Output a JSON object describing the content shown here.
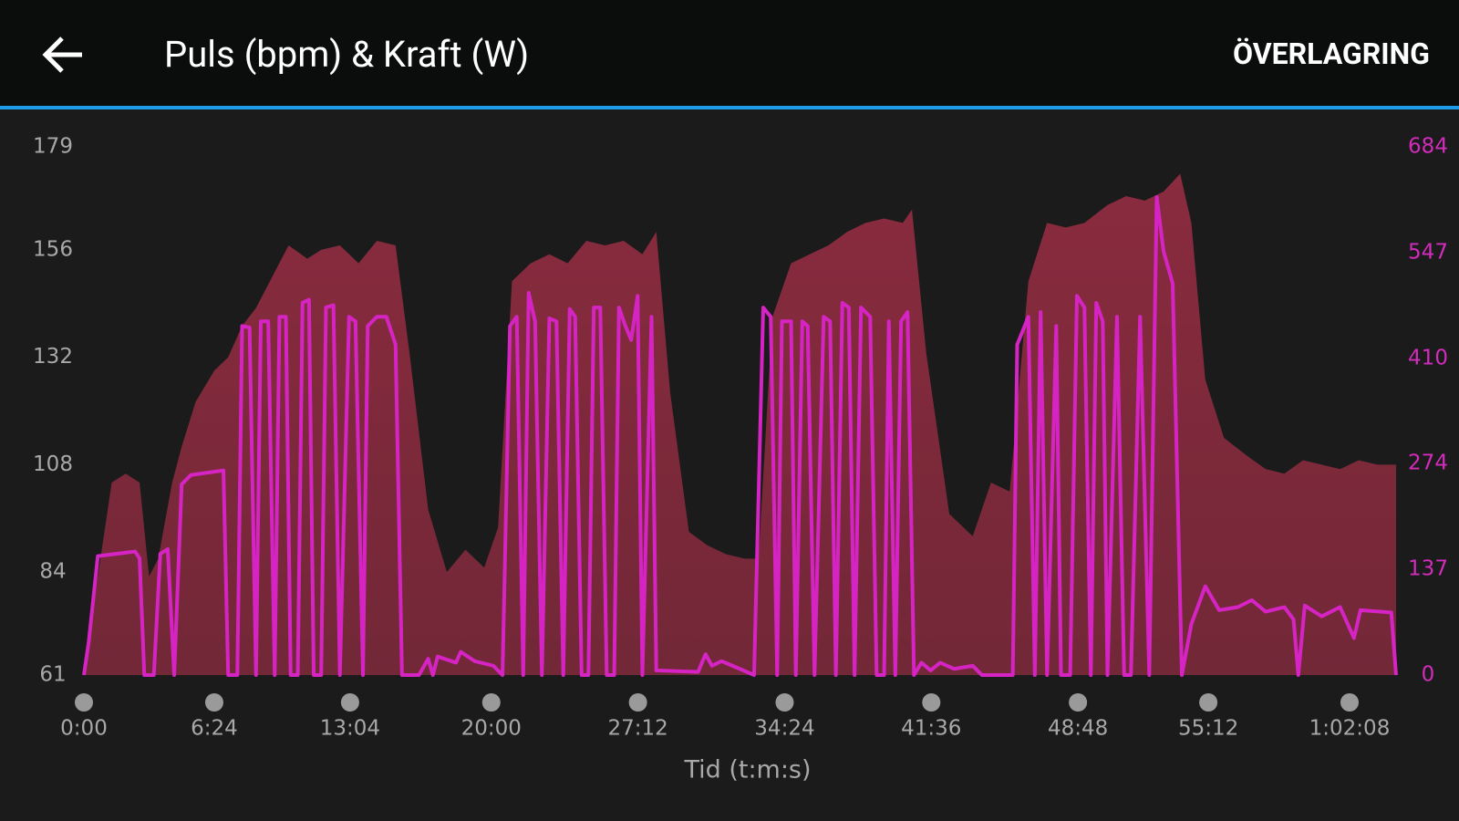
{
  "header": {
    "title": "Puls (bpm) & Kraft (W)",
    "action": "ÖVERLAGRING"
  },
  "chart_data": {
    "type": "area-line",
    "xlabel": "Tid (t:m:s)",
    "xlim": [
      0,
      3865
    ],
    "xticks": [
      {
        "value": 0,
        "label": "0:00"
      },
      {
        "value": 384,
        "label": "6:24"
      },
      {
        "value": 784,
        "label": "13:04"
      },
      {
        "value": 1200,
        "label": "20:00"
      },
      {
        "value": 1632,
        "label": "27:12"
      },
      {
        "value": 2064,
        "label": "34:24"
      },
      {
        "value": 2496,
        "label": "41:36"
      },
      {
        "value": 2928,
        "label": "48:48"
      },
      {
        "value": 3312,
        "label": "55:12"
      },
      {
        "value": 3728,
        "label": "1:02:08"
      }
    ],
    "ylim": [
      61,
      179
    ],
    "yticks": [
      61,
      84,
      108,
      132,
      156,
      179
    ],
    "y2lim": [
      0,
      684
    ],
    "y2ticks": [
      0,
      137,
      274,
      410,
      547,
      684
    ],
    "series": [
      {
        "kind": "area",
        "color": "#8a2b3f",
        "axis": "y",
        "x": [
          0,
          41,
          82,
          123,
          164,
          192,
          219,
          260,
          288,
          329,
          384,
          425,
          466,
          507,
          548,
          603,
          658,
          699,
          754,
          809,
          863,
          918,
          959,
          1014,
          1069,
          1124,
          1179,
          1220,
          1261,
          1316,
          1371,
          1425,
          1480,
          1535,
          1590,
          1645,
          1686,
          1727,
          1782,
          1836,
          1891,
          1946,
          1987,
          2028,
          2083,
          2138,
          2193,
          2248,
          2302,
          2357,
          2412,
          2439,
          2481,
          2549,
          2618,
          2672,
          2727,
          2782,
          2837,
          2892,
          2947,
          3015,
          3070,
          3125,
          3180,
          3229,
          3262,
          3303,
          3358,
          3426,
          3481,
          3536,
          3591,
          3646,
          3700,
          3755,
          3810,
          3865
        ],
        "values": [
          61,
          83,
          104,
          106,
          104,
          83,
          87,
          104,
          112,
          122,
          129,
          132,
          139,
          143,
          149,
          157,
          154,
          156,
          157,
          153,
          158,
          157,
          133,
          98,
          84,
          89,
          85,
          94,
          149,
          153,
          155,
          153,
          158,
          157,
          158,
          155,
          160,
          124,
          93,
          90,
          88,
          87,
          87,
          141,
          153,
          155,
          157,
          160,
          162,
          163,
          162,
          165,
          133,
          97,
          92,
          104,
          102,
          149,
          162,
          161,
          162,
          166,
          168,
          167,
          169,
          173,
          162,
          127,
          114,
          110,
          107,
          106,
          109,
          108,
          107,
          109,
          108,
          108
        ]
      },
      {
        "kind": "line",
        "color": "#d624c4",
        "axis": "y2",
        "x": [
          0,
          14,
          41,
          151,
          164,
          178,
          206,
          225,
          247,
          266,
          288,
          315,
          411,
          425,
          452,
          466,
          488,
          507,
          521,
          543,
          562,
          576,
          595,
          609,
          630,
          644,
          663,
          677,
          699,
          713,
          735,
          754,
          781,
          800,
          822,
          836,
          863,
          891,
          918,
          937,
          987,
          1014,
          1028,
          1042,
          1096,
          1110,
          1151,
          1206,
          1233,
          1255,
          1275,
          1294,
          1310,
          1329,
          1349,
          1371,
          1392,
          1412,
          1431,
          1447,
          1466,
          1486,
          1502,
          1521,
          1540,
          1562,
          1576,
          1595,
          1612,
          1631,
          1645,
          1672,
          1686,
          1809,
          1831,
          1850,
          1878,
          1932,
          1974,
          2001,
          2023,
          2042,
          2056,
          2083,
          2097,
          2116,
          2132,
          2152,
          2179,
          2198,
          2215,
          2234,
          2253,
          2270,
          2289,
          2316,
          2335,
          2357,
          2371,
          2390,
          2407,
          2426,
          2445,
          2467,
          2494,
          2522,
          2563,
          2618,
          2645,
          2736,
          2749,
          2782,
          2801,
          2818,
          2837,
          2864,
          2878,
          2905,
          2925,
          2947,
          2966,
          2982,
          3001,
          3015,
          3043,
          3064,
          3084,
          3111,
          3138,
          3160,
          3180,
          3207,
          3234,
          3262,
          3303,
          3344,
          3399,
          3440,
          3481,
          3536,
          3563,
          3577,
          3596,
          3646,
          3700,
          3741,
          3760,
          3851,
          3865
        ],
        "values": [
          0,
          42,
          154,
          160,
          151,
          0,
          0,
          157,
          163,
          0,
          247,
          259,
          265,
          0,
          0,
          452,
          450,
          0,
          458,
          458,
          0,
          464,
          464,
          0,
          0,
          482,
          486,
          0,
          0,
          476,
          479,
          0,
          464,
          458,
          0,
          452,
          464,
          464,
          428,
          0,
          0,
          21,
          0,
          24,
          16,
          30,
          18,
          12,
          0,
          452,
          464,
          0,
          495,
          458,
          0,
          462,
          458,
          0,
          474,
          464,
          0,
          0,
          476,
          476,
          0,
          0,
          476,
          452,
          434,
          491,
          0,
          464,
          6,
          4,
          27,
          12,
          18,
          8,
          0,
          476,
          464,
          0,
          458,
          458,
          0,
          458,
          452,
          0,
          464,
          458,
          0,
          482,
          476,
          0,
          476,
          464,
          0,
          0,
          458,
          0,
          458,
          470,
          0,
          16,
          6,
          16,
          8,
          12,
          0,
          0,
          428,
          464,
          0,
          470,
          0,
          452,
          0,
          0,
          491,
          476,
          0,
          482,
          458,
          0,
          464,
          0,
          0,
          464,
          0,
          619,
          549,
          507,
          0,
          66,
          115,
          84,
          88,
          97,
          82,
          88,
          72,
          0,
          90,
          76,
          88,
          48,
          84,
          81,
          0
        ]
      }
    ]
  }
}
